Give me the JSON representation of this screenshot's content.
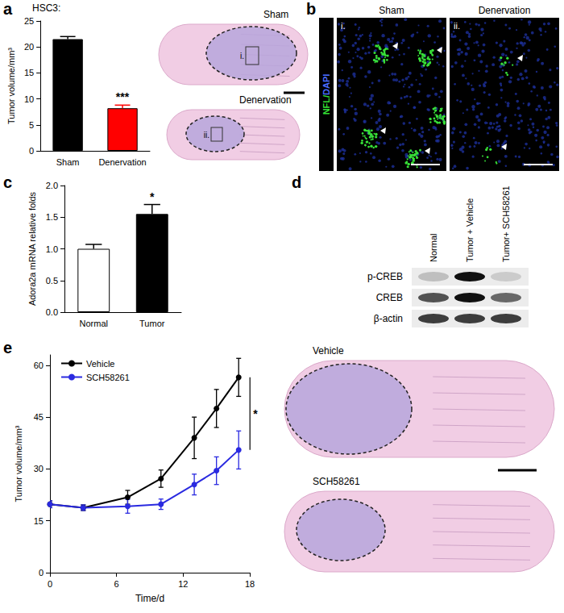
{
  "chart_data": [
    {
      "label": "a",
      "type": "bar",
      "title": "HSC3:",
      "ylabel": "Tumor volume/mm³",
      "categories": [
        "Sham",
        "Denervation"
      ],
      "values": [
        21.5,
        8.2
      ],
      "errors": [
        0.5,
        0.6
      ],
      "colors": [
        "#000000",
        "#ff0000"
      ],
      "ylim": [
        0,
        25
      ],
      "yticks": [
        0,
        5,
        10,
        15,
        20,
        25
      ],
      "grid": false,
      "annotations": [
        {
          "text": "***",
          "category": "Denervation"
        }
      ]
    },
    {
      "label": "c",
      "type": "bar",
      "ylabel": "Adora2a mRNA relative folds",
      "categories": [
        "Normal",
        "Tumor"
      ],
      "values": [
        1.0,
        1.55
      ],
      "errors": [
        0.07,
        0.15
      ],
      "colors": [
        "#ffffff",
        "#000000"
      ],
      "ylim": [
        0,
        2
      ],
      "yticks": [
        {
          "value": 0,
          "label": "0.0"
        },
        {
          "value": 0.5,
          "label": "0.5"
        },
        {
          "value": 1,
          "label": "1.0"
        },
        {
          "value": 1.5,
          "label": "1.5"
        },
        {
          "value": 2,
          "label": "2.0"
        }
      ],
      "grid": false,
      "annotations": [
        {
          "text": "*",
          "category": "Tumor"
        }
      ]
    },
    {
      "label": "e",
      "type": "line",
      "xlabel": "Time/d",
      "ylabel": "Tumor volume/mm³",
      "x": [
        0,
        3,
        7,
        10,
        13,
        15,
        17
      ],
      "series": [
        {
          "name": "Vehicle",
          "color": "#000000",
          "values": [
            19.8,
            18.8,
            21.8,
            27.2,
            39.0,
            47.5,
            56.5
          ],
          "errors": [
            1.0,
            0.8,
            2.0,
            2.5,
            6.0,
            5.5,
            5.5
          ]
        },
        {
          "name": "SCH58261",
          "color": "#2a2ae0",
          "values": [
            19.8,
            18.8,
            19.2,
            19.8,
            25.5,
            29.5,
            35.5
          ],
          "errors": [
            1.0,
            0.8,
            2.0,
            1.5,
            3.0,
            4.0,
            5.5
          ]
        }
      ],
      "xlim": [
        0,
        18
      ],
      "xticks": [
        0,
        6,
        12,
        18
      ],
      "ylim": [
        0,
        63
      ],
      "yticks": [
        0,
        15,
        30,
        45,
        60
      ],
      "marker": "circle",
      "legend": "upper left",
      "grid": false,
      "annotations": [
        {
          "text": "*"
        }
      ]
    }
  ],
  "images": {
    "a": {
      "sections": [
        {
          "label": "Sham",
          "box": "i."
        },
        {
          "label": "Denervation",
          "box": "ii."
        }
      ]
    },
    "b": {
      "label": "b",
      "stain": [
        {
          "text": "NFL/",
          "color": "#33dd33"
        },
        {
          "text": "DAPI",
          "color": "#4a6cff"
        }
      ],
      "sections": [
        {
          "label": "Sham",
          "box": "i."
        },
        {
          "label": "Denervation",
          "box": "ii."
        }
      ]
    },
    "d": {
      "label": "d",
      "lanes": [
        "Normal",
        "Tumor + Vehicle",
        "Tumor+ SCH58261"
      ],
      "rows": [
        {
          "name": "p-CREB",
          "intensity": [
            0.2,
            1.0,
            0.15
          ]
        },
        {
          "name": "CREB",
          "intensity": [
            0.7,
            1.0,
            0.6
          ]
        },
        {
          "name": "β-actin",
          "intensity": [
            0.8,
            0.8,
            0.8
          ]
        }
      ]
    },
    "e": {
      "sections": [
        {
          "label": "Vehicle"
        },
        {
          "label": "SCH58261"
        }
      ]
    }
  }
}
